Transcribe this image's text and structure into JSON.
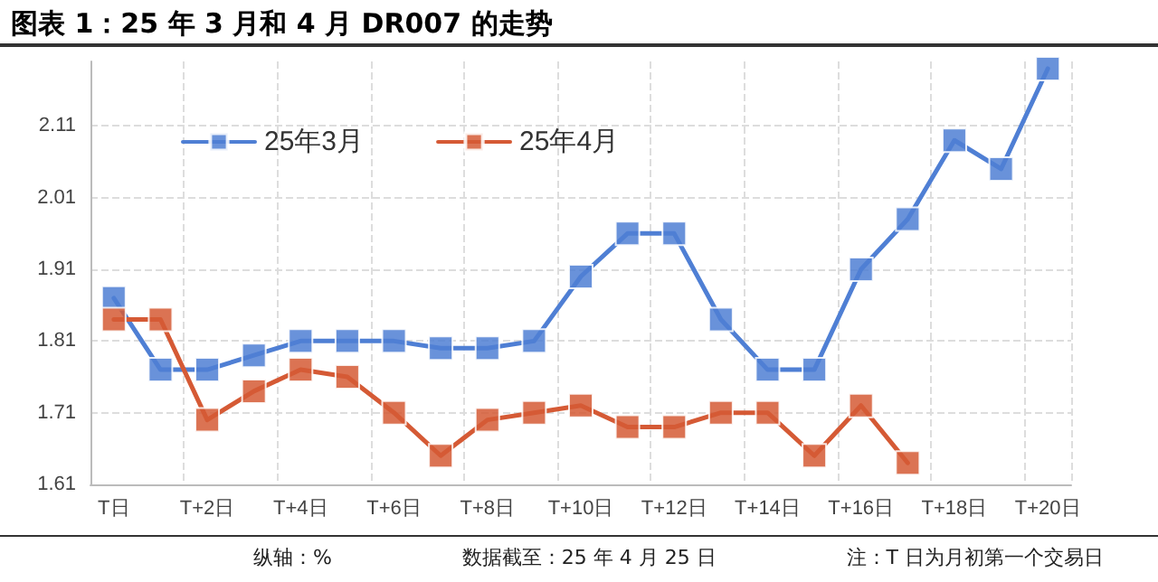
{
  "chart_data": {
    "type": "line",
    "title": "图表 1：25 年 3 月和 4 月 DR007 的走势",
    "categories": [
      "T日",
      null,
      "T+2日",
      null,
      "T+4日",
      null,
      "T+6日",
      null,
      "T+8日",
      null,
      "T+10日",
      null,
      "T+12日",
      null,
      "T+14日",
      null,
      "T+16日",
      null,
      "T+18日",
      null,
      "T+20日"
    ],
    "series": [
      {
        "name": "25年3月",
        "color": "#4f7fd4",
        "values": [
          1.87,
          1.77,
          1.77,
          1.79,
          1.81,
          1.81,
          1.81,
          1.8,
          1.8,
          1.81,
          1.9,
          1.96,
          1.96,
          1.84,
          1.77,
          1.77,
          1.91,
          1.98,
          2.09,
          2.05,
          2.19
        ]
      },
      {
        "name": "25年4月",
        "color": "#d55a35",
        "values": [
          1.84,
          1.84,
          1.7,
          1.74,
          1.77,
          1.76,
          1.71,
          1.65,
          1.7,
          1.71,
          1.72,
          1.69,
          1.69,
          1.71,
          1.71,
          1.65,
          1.72,
          1.64,
          null,
          null,
          null
        ]
      }
    ],
    "ylim": [
      1.61,
      2.2
    ],
    "yticks": [
      1.61,
      1.71,
      1.81,
      1.91,
      2.01,
      2.11
    ],
    "grid": true,
    "legend": "top left",
    "marker": "square",
    "line_style": "solid",
    "annotations": [
      "纵轴：%",
      "数据截至：25 年 4 月 25 日",
      "注：T 日为月初第一个交易日"
    ]
  }
}
